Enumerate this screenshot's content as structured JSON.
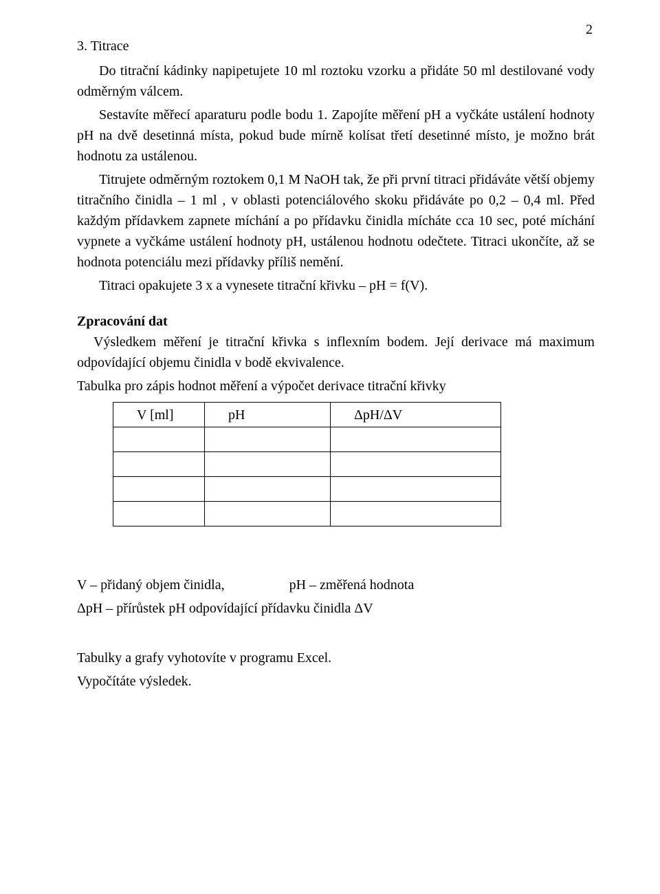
{
  "page_number": "2",
  "heading_3": "3. Titrace",
  "p3_1": "Do titrační kádinky napipetujete 10 ml roztoku vzorku a přidáte 50 ml  destilované vody odměrným válcem.",
  "p3_2": "Sestavíte měřecí aparaturu podle bodu 1.  Zapojíte měření pH a vyčkáte ustálení hodnoty pH na dvě desetinná místa, pokud  bude mírně kolísat třetí desetinné místo, je možno brát hodnotu za ustálenou.",
  "p3_3": "Titrujete odměrným roztokem 0,1 M NaOH tak, že při první titraci přidáváte větší objemy titračního činidla – 1 ml , v oblasti potenciálového skoku přidáváte po 0,2 – 0,4 ml. Před každým přídavkem zapnete míchání a po přídavku činidla mícháte cca 10 sec, poté míchání vypnete a vyčkáme ustálení hodnoty pH, ustálenou hodnotu odečtete. Titraci ukončíte, až se hodnota potenciálu mezi přídavky příliš nemění.",
  "p3_4": "Titraci opakujete 3 x a vynesete titrační křivku – pH = f(V).",
  "heading_z": "Zpracování dat",
  "pz_1": "Výsledkem měření je titrační křivka s inflexním bodem. Její derivace má maximum odpovídající objemu činidla v bodě ekvivalence.",
  "pz_2": "Tabulka pro zápis hodnot měření a výpočet derivace titrační křivky",
  "table": {
    "headers": [
      "V [ml]",
      "pH",
      "ΔpH/ΔV"
    ],
    "empty_rows": 4
  },
  "legend_v": "V – přidaný objem činidla,",
  "legend_ph": "pH – změřená hodnota",
  "legend_dph": "ΔpH – přírůstek pH odpovídající přídavku činidla ΔV",
  "final_1": "Tabulky a grafy vyhotovíte v programu Excel.",
  "final_2": "Vypočítáte výsledek."
}
